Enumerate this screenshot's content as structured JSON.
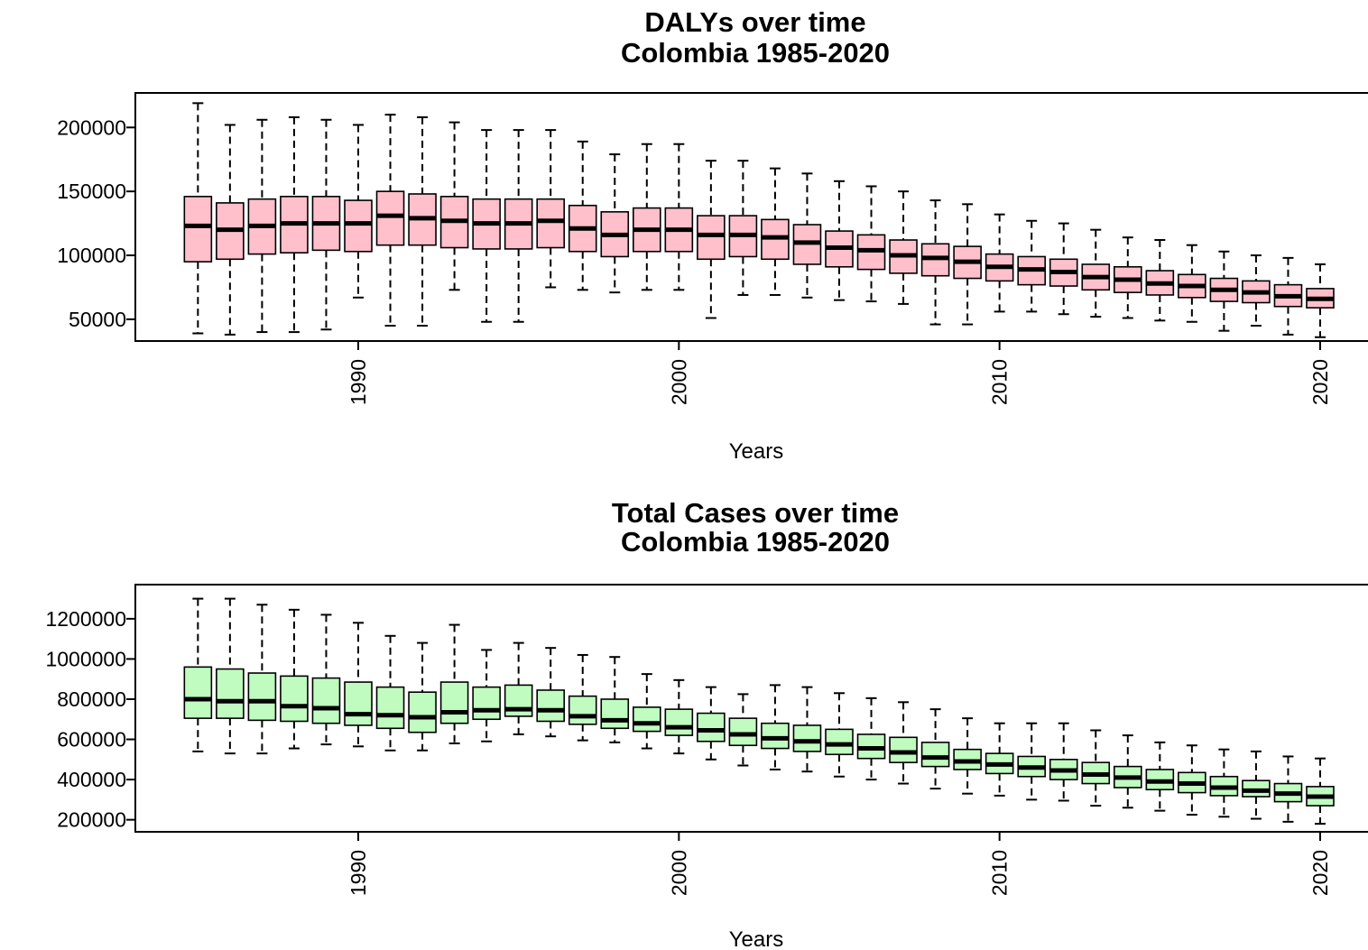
{
  "chart_data": [
    {
      "type": "boxplot",
      "title": "DALYs over time",
      "subtitle": "Colombia 1985-2020",
      "xlabel": "Years",
      "ylabel": "",
      "x_ticks": [
        1990,
        2000,
        2010,
        2020
      ],
      "y_ticks": [
        50000,
        100000,
        150000,
        200000
      ],
      "xlim": [
        1983.1,
        2021.5
      ],
      "ylim": [
        33000,
        227000
      ],
      "box_color": "#ffc0cb",
      "years": [
        1985,
        1986,
        1987,
        1988,
        1989,
        1990,
        1991,
        1992,
        1993,
        1994,
        1995,
        1996,
        1997,
        1998,
        1999,
        2000,
        2001,
        2002,
        2003,
        2004,
        2005,
        2006,
        2007,
        2008,
        2009,
        2010,
        2011,
        2012,
        2013,
        2014,
        2015,
        2016,
        2017,
        2018,
        2019,
        2020
      ],
      "boxes": [
        {
          "min": 39000,
          "q1": 95000,
          "median": 123000,
          "q3": 146000,
          "max": 219000
        },
        {
          "min": 38000,
          "q1": 97000,
          "median": 120000,
          "q3": 141000,
          "max": 202000
        },
        {
          "min": 40000,
          "q1": 101000,
          "median": 123000,
          "q3": 144000,
          "max": 206000
        },
        {
          "min": 40000,
          "q1": 102000,
          "median": 125000,
          "q3": 146000,
          "max": 208000
        },
        {
          "min": 42000,
          "q1": 104000,
          "median": 125000,
          "q3": 146000,
          "max": 206000
        },
        {
          "min": 67000,
          "q1": 103000,
          "median": 125000,
          "q3": 143000,
          "max": 202000
        },
        {
          "min": 45000,
          "q1": 108000,
          "median": 131000,
          "q3": 150000,
          "max": 210000
        },
        {
          "min": 45000,
          "q1": 108000,
          "median": 129000,
          "q3": 148000,
          "max": 208000
        },
        {
          "min": 73000,
          "q1": 106000,
          "median": 127000,
          "q3": 146000,
          "max": 204000
        },
        {
          "min": 48000,
          "q1": 105000,
          "median": 125000,
          "q3": 144000,
          "max": 198000
        },
        {
          "min": 48000,
          "q1": 105000,
          "median": 125000,
          "q3": 144000,
          "max": 198000
        },
        {
          "min": 75000,
          "q1": 106000,
          "median": 127000,
          "q3": 144000,
          "max": 198000
        },
        {
          "min": 73000,
          "q1": 103000,
          "median": 121000,
          "q3": 139000,
          "max": 189000
        },
        {
          "min": 71000,
          "q1": 99000,
          "median": 116000,
          "q3": 134000,
          "max": 179000
        },
        {
          "min": 73000,
          "q1": 103000,
          "median": 120000,
          "q3": 137000,
          "max": 187000
        },
        {
          "min": 73000,
          "q1": 103000,
          "median": 120000,
          "q3": 137000,
          "max": 187000
        },
        {
          "min": 51000,
          "q1": 97000,
          "median": 116000,
          "q3": 131000,
          "max": 174000
        },
        {
          "min": 69000,
          "q1": 99000,
          "median": 116000,
          "q3": 131000,
          "max": 174000
        },
        {
          "min": 69000,
          "q1": 97000,
          "median": 114000,
          "q3": 128000,
          "max": 168000
        },
        {
          "min": 67000,
          "q1": 93000,
          "median": 110000,
          "q3": 124000,
          "max": 164000
        },
        {
          "min": 65000,
          "q1": 91000,
          "median": 106000,
          "q3": 119000,
          "max": 158000
        },
        {
          "min": 64000,
          "q1": 89000,
          "median": 104000,
          "q3": 116000,
          "max": 154000
        },
        {
          "min": 62000,
          "q1": 86000,
          "median": 100000,
          "q3": 112000,
          "max": 150000
        },
        {
          "min": 46000,
          "q1": 84000,
          "median": 98000,
          "q3": 109000,
          "max": 143000
        },
        {
          "min": 46000,
          "q1": 82000,
          "median": 95000,
          "q3": 107000,
          "max": 140000
        },
        {
          "min": 56000,
          "q1": 80000,
          "median": 91000,
          "q3": 101000,
          "max": 132000
        },
        {
          "min": 56000,
          "q1": 77000,
          "median": 89000,
          "q3": 99000,
          "max": 127000
        },
        {
          "min": 54000,
          "q1": 76000,
          "median": 87000,
          "q3": 97000,
          "max": 125000
        },
        {
          "min": 52000,
          "q1": 73000,
          "median": 83000,
          "q3": 93000,
          "max": 120000
        },
        {
          "min": 51000,
          "q1": 71000,
          "median": 81000,
          "q3": 91000,
          "max": 114000
        },
        {
          "min": 49000,
          "q1": 69000,
          "median": 78000,
          "q3": 88000,
          "max": 112000
        },
        {
          "min": 48000,
          "q1": 67000,
          "median": 76000,
          "q3": 85000,
          "max": 108000
        },
        {
          "min": 41000,
          "q1": 64000,
          "median": 73000,
          "q3": 82000,
          "max": 103000
        },
        {
          "min": 45000,
          "q1": 63000,
          "median": 71000,
          "q3": 80000,
          "max": 100000
        },
        {
          "min": 38000,
          "q1": 60000,
          "median": 68000,
          "q3": 77000,
          "max": 98000
        },
        {
          "min": 36000,
          "q1": 59000,
          "median": 66000,
          "q3": 74000,
          "max": 93000
        }
      ]
    },
    {
      "type": "boxplot",
      "title": "Total Cases over time",
      "subtitle": "Colombia 1985-2020",
      "xlabel": "Years",
      "ylabel": "",
      "x_ticks": [
        1990,
        2000,
        2010,
        2020
      ],
      "y_ticks": [
        200000,
        400000,
        600000,
        800000,
        1000000,
        1200000
      ],
      "xlim": [
        1983.1,
        2021.5
      ],
      "ylim": [
        140000,
        1370000
      ],
      "box_color": "#c0fcc0",
      "years": [
        1985,
        1986,
        1987,
        1988,
        1989,
        1990,
        1991,
        1992,
        1993,
        1994,
        1995,
        1996,
        1997,
        1998,
        1999,
        2000,
        2001,
        2002,
        2003,
        2004,
        2005,
        2006,
        2007,
        2008,
        2009,
        2010,
        2011,
        2012,
        2013,
        2014,
        2015,
        2016,
        2017,
        2018,
        2019,
        2020
      ],
      "boxes": [
        {
          "min": 540000,
          "q1": 705000,
          "median": 800000,
          "q3": 960000,
          "max": 1300000
        },
        {
          "min": 530000,
          "q1": 705000,
          "median": 790000,
          "q3": 950000,
          "max": 1300000
        },
        {
          "min": 530000,
          "q1": 695000,
          "median": 790000,
          "q3": 930000,
          "max": 1270000
        },
        {
          "min": 555000,
          "q1": 690000,
          "median": 765000,
          "q3": 915000,
          "max": 1245000
        },
        {
          "min": 575000,
          "q1": 680000,
          "median": 755000,
          "q3": 905000,
          "max": 1220000
        },
        {
          "min": 565000,
          "q1": 670000,
          "median": 725000,
          "q3": 885000,
          "max": 1180000
        },
        {
          "min": 545000,
          "q1": 655000,
          "median": 720000,
          "q3": 860000,
          "max": 1115000
        },
        {
          "min": 545000,
          "q1": 635000,
          "median": 710000,
          "q3": 835000,
          "max": 1080000
        },
        {
          "min": 580000,
          "q1": 680000,
          "median": 735000,
          "q3": 885000,
          "max": 1170000
        },
        {
          "min": 590000,
          "q1": 700000,
          "median": 745000,
          "q3": 860000,
          "max": 1045000
        },
        {
          "min": 625000,
          "q1": 715000,
          "median": 750000,
          "q3": 870000,
          "max": 1080000
        },
        {
          "min": 615000,
          "q1": 690000,
          "median": 745000,
          "q3": 845000,
          "max": 1055000
        },
        {
          "min": 595000,
          "q1": 675000,
          "median": 715000,
          "q3": 815000,
          "max": 1020000
        },
        {
          "min": 585000,
          "q1": 655000,
          "median": 695000,
          "q3": 800000,
          "max": 1010000
        },
        {
          "min": 555000,
          "q1": 640000,
          "median": 680000,
          "q3": 760000,
          "max": 925000
        },
        {
          "min": 530000,
          "q1": 620000,
          "median": 660000,
          "q3": 750000,
          "max": 895000
        },
        {
          "min": 500000,
          "q1": 590000,
          "median": 645000,
          "q3": 730000,
          "max": 860000
        },
        {
          "min": 470000,
          "q1": 570000,
          "median": 625000,
          "q3": 705000,
          "max": 825000
        },
        {
          "min": 450000,
          "q1": 555000,
          "median": 605000,
          "q3": 680000,
          "max": 870000
        },
        {
          "min": 440000,
          "q1": 540000,
          "median": 590000,
          "q3": 670000,
          "max": 860000
        },
        {
          "min": 415000,
          "q1": 525000,
          "median": 575000,
          "q3": 650000,
          "max": 830000
        },
        {
          "min": 400000,
          "q1": 505000,
          "median": 555000,
          "q3": 625000,
          "max": 805000
        },
        {
          "min": 380000,
          "q1": 485000,
          "median": 535000,
          "q3": 610000,
          "max": 785000
        },
        {
          "min": 355000,
          "q1": 465000,
          "median": 510000,
          "q3": 585000,
          "max": 750000
        },
        {
          "min": 330000,
          "q1": 450000,
          "median": 490000,
          "q3": 550000,
          "max": 705000
        },
        {
          "min": 320000,
          "q1": 430000,
          "median": 475000,
          "q3": 530000,
          "max": 680000
        },
        {
          "min": 300000,
          "q1": 415000,
          "median": 460000,
          "q3": 515000,
          "max": 680000
        },
        {
          "min": 295000,
          "q1": 400000,
          "median": 445000,
          "q3": 500000,
          "max": 680000
        },
        {
          "min": 270000,
          "q1": 380000,
          "median": 425000,
          "q3": 485000,
          "max": 645000
        },
        {
          "min": 260000,
          "q1": 360000,
          "median": 410000,
          "q3": 465000,
          "max": 620000
        },
        {
          "min": 245000,
          "q1": 350000,
          "median": 390000,
          "q3": 450000,
          "max": 585000
        },
        {
          "min": 225000,
          "q1": 335000,
          "median": 380000,
          "q3": 435000,
          "max": 570000
        },
        {
          "min": 215000,
          "q1": 320000,
          "median": 360000,
          "q3": 415000,
          "max": 550000
        },
        {
          "min": 205000,
          "q1": 315000,
          "median": 345000,
          "q3": 395000,
          "max": 540000
        },
        {
          "min": 190000,
          "q1": 290000,
          "median": 330000,
          "q3": 380000,
          "max": 515000
        },
        {
          "min": 180000,
          "q1": 270000,
          "median": 315000,
          "q3": 365000,
          "max": 505000
        }
      ]
    }
  ]
}
